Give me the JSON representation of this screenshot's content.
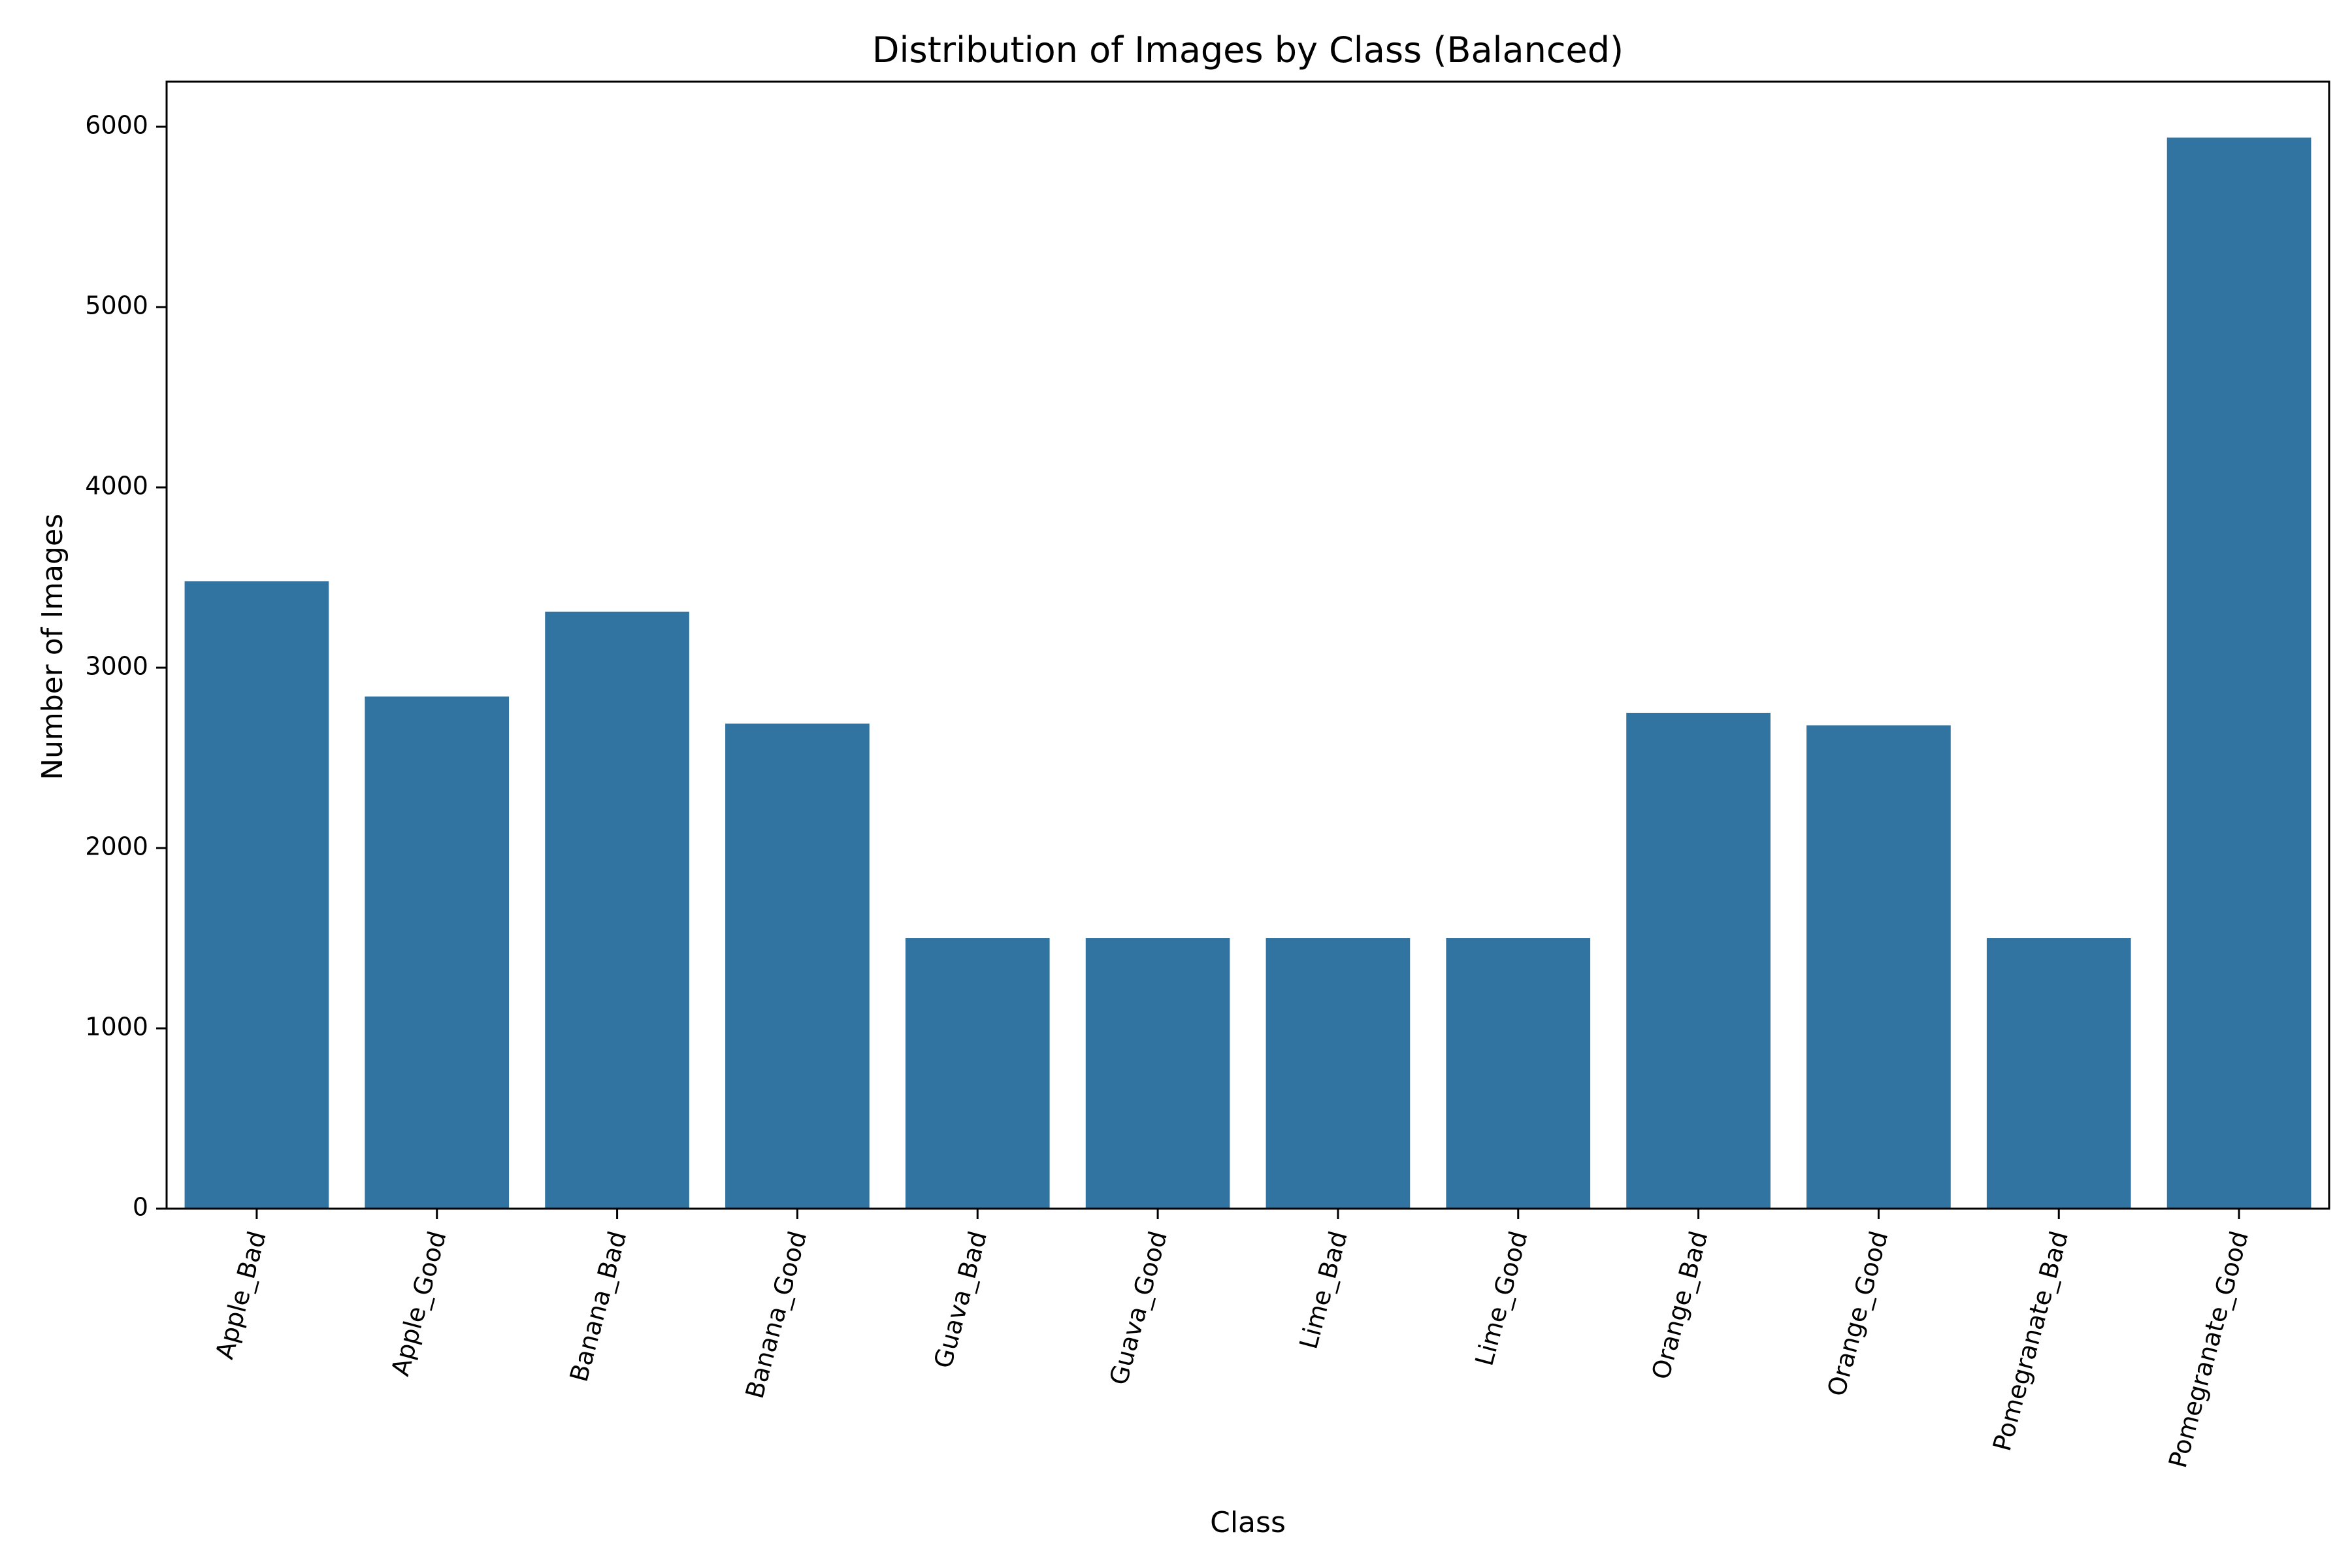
{
  "chart_data": {
    "type": "bar",
    "title": "Distribution of Images by Class (Balanced)",
    "xlabel": "Class",
    "ylabel": "Number of Images",
    "categories": [
      "Apple_Bad",
      "Apple_Good",
      "Banana_Bad",
      "Banana_Good",
      "Guava_Bad",
      "Guava_Good",
      "Lime_Bad",
      "Lime_Good",
      "Orange_Bad",
      "Orange_Good",
      "Pomegranate_Bad",
      "Pomegranate_Good"
    ],
    "values": [
      3480,
      2840,
      3310,
      2690,
      1500,
      1500,
      1500,
      1500,
      2750,
      2680,
      1500,
      5940
    ],
    "ylim": [
      0,
      6250
    ],
    "yticks": [
      0,
      1000,
      2000,
      3000,
      4000,
      5000,
      6000
    ],
    "bar_color": "#3274a1",
    "grid": false,
    "legend": "none"
  }
}
